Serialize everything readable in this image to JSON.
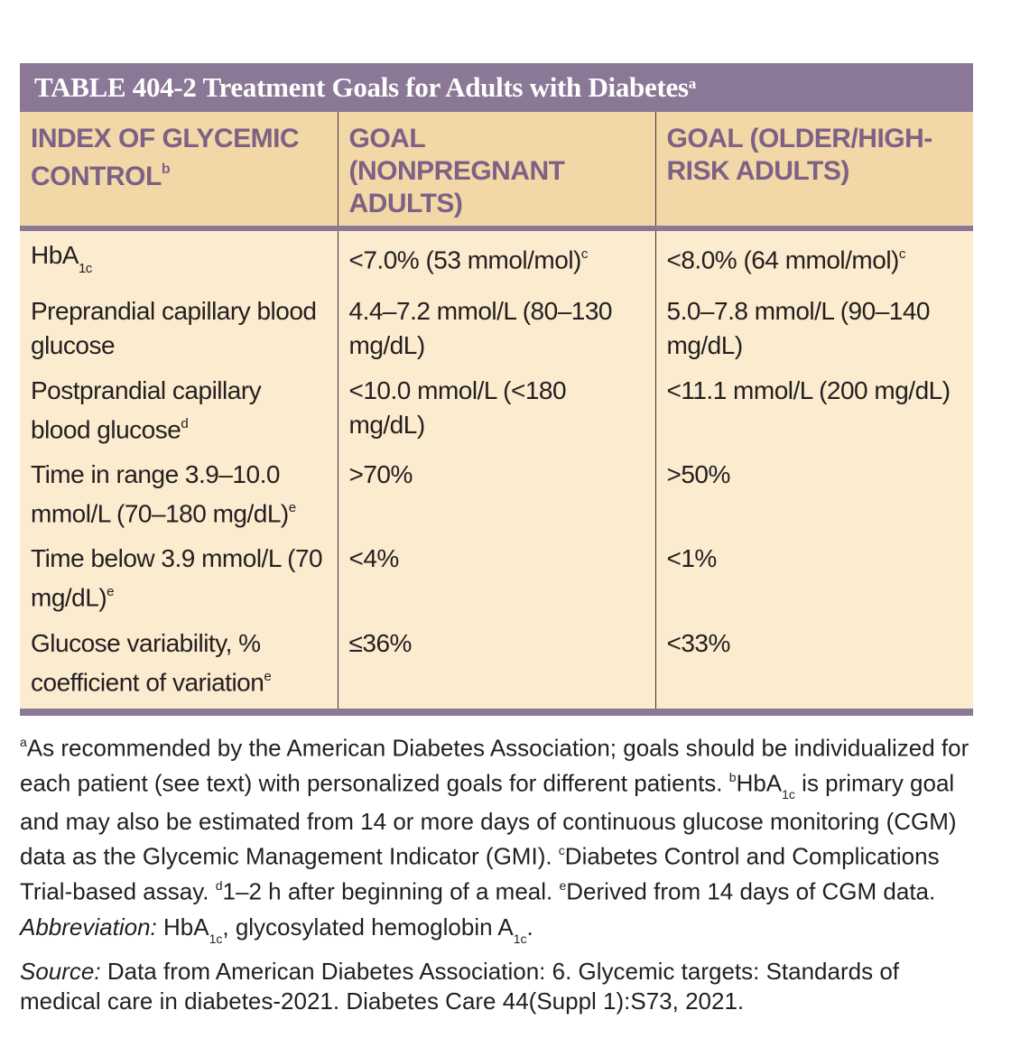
{
  "table": {
    "title": "TABLE 404-2  Treatment Goals for Adults with Diabetes",
    "title_sup": "a",
    "headers": {
      "col1": "INDEX OF GLYCEMIC CONTROL",
      "col1_sup": "b",
      "col2": "GOAL (NONPREGNANT ADULTS)",
      "col3": "GOAL (OLDER/HIGH-RISK ADULTS)"
    },
    "rows": [
      {
        "index": "HbA",
        "index_sub": "1c",
        "index_sup": "",
        "goal": "<7.0% (53 mmol/mol)",
        "goal_sup": "c",
        "older": "<8.0% (64 mmol/mol)",
        "older_sup": "c"
      },
      {
        "index": "Preprandial capillary blood glucose",
        "index_sup": "",
        "goal": "4.4–7.2 mmol/L (80–130 mg/dL)",
        "goal_sup": "",
        "older": "5.0–7.8 mmol/L (90–140 mg/dL)",
        "older_sup": ""
      },
      {
        "index": "Postprandial capillary blood glucose",
        "index_sup": "d",
        "goal": "<10.0 mmol/L (<180 mg/dL)",
        "goal_sup": "",
        "older": "<11.1 mmol/L (200 mg/dL)",
        "older_sup": ""
      },
      {
        "index": "Time in range 3.9–10.0 mmol/L (70–180 mg/dL)",
        "index_sup": "e",
        "goal": ">70%",
        "goal_sup": "",
        "older": ">50%",
        "older_sup": ""
      },
      {
        "index": "Time below 3.9 mmol/L (70 mg/dL)",
        "index_sup": "e",
        "goal": "<4%",
        "goal_sup": "",
        "older": "<1%",
        "older_sup": ""
      },
      {
        "index": "Glucose variability, % coefficient of variation",
        "index_sup": "e",
        "goal": "≤36%",
        "goal_sup": "",
        "older": "<33%",
        "older_sup": ""
      }
    ]
  },
  "footnotes": {
    "main": {
      "a_mark": "a",
      "a_text": "As recommended by the American Diabetes Association; goals should be individualized for each patient (see text) with personalized goals for different patients. ",
      "b_mark": "b",
      "b_text_pre": "HbA",
      "b_sub": "1c",
      "b_text": " is primary goal and may also be estimated from 14 or more days of continuous glucose monitoring (CGM) data as the Glycemic Management Indicator (GMI). ",
      "c_mark": "c",
      "c_text": "Diabetes Control and Complications Trial-based assay. ",
      "d_mark": "d",
      "d_text": "1–2 h after beginning of a meal. ",
      "e_mark": "e",
      "e_text": "Derived from 14 days of CGM data."
    },
    "abbreviation": {
      "label": "Abbreviation:",
      "text_pre": " HbA",
      "sub1": "1c",
      "text_mid": ", glycosylated hemoglobin A",
      "sub2": "1c",
      "text_end": "."
    },
    "source": {
      "label": "Source:",
      "text": " Data from American Diabetes Association: 6. Glycemic targets: Standards of medical care in diabetes-2021. Diabetes Care 44(Suppl 1):S73, 2021."
    }
  }
}
